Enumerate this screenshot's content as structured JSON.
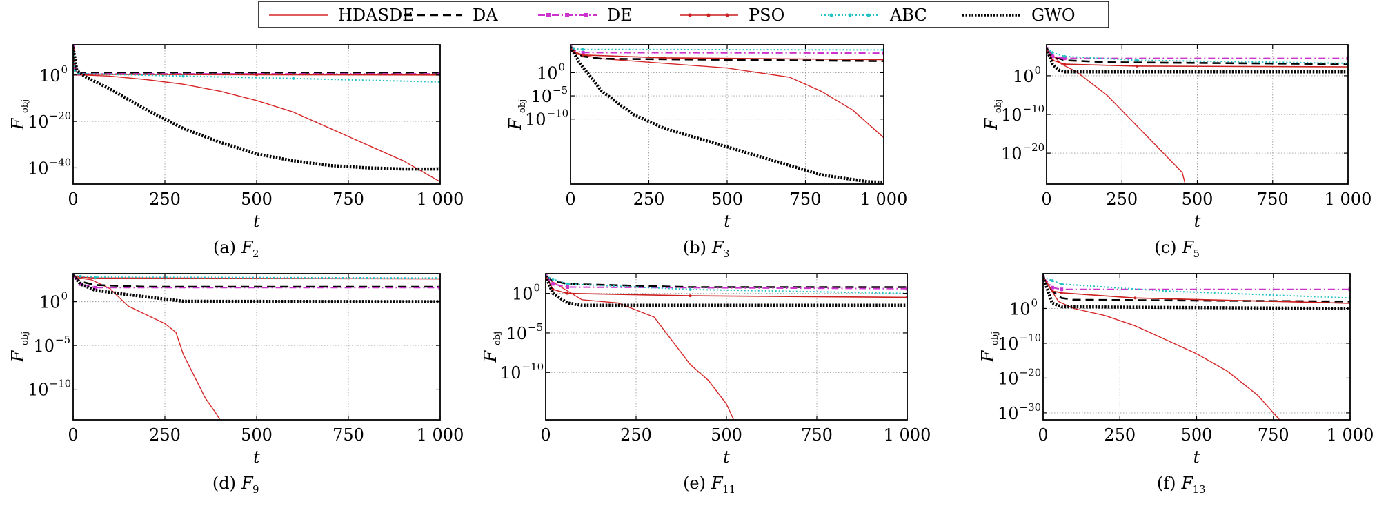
{
  "legend": {
    "entries": [
      {
        "name": "HDASDE",
        "color": "#d62728",
        "style": "solid"
      },
      {
        "name": "DA",
        "color": "#000000",
        "style": "dashed"
      },
      {
        "name": "DE",
        "color": "#cc33cc",
        "style": "dashdot-marker"
      },
      {
        "name": "PSO",
        "color": "#cc1f1f",
        "style": "solid-marker"
      },
      {
        "name": "ABC",
        "color": "#22c1c3",
        "style": "dotted-marker"
      },
      {
        "name": "GWO",
        "color": "#000000",
        "style": "thick-dotted"
      }
    ]
  },
  "chart_data": [
    {
      "type": "line",
      "caption_prefix": "(a)",
      "caption_fn": "F",
      "caption_sub": "2",
      "xlabel": "t",
      "ylabel": "F",
      "ylabel_sub": "obj",
      "yscale": "log",
      "xlim": [
        0,
        1000
      ],
      "ylim_exp": [
        -47,
        13
      ],
      "xticks": [
        0,
        250,
        500,
        750,
        1000
      ],
      "xtick_labels": [
        "0",
        "250",
        "500",
        "750",
        "1 000"
      ],
      "ytick_exps": [
        0,
        -20,
        -40
      ],
      "ytick_exp_labels": [
        "0",
        "−20",
        "−40"
      ],
      "ytick_base": "10",
      "grid": true,
      "series": [
        {
          "name": "HDASDE",
          "x": [
            0,
            25,
            100,
            200,
            300,
            400,
            500,
            600,
            700,
            800,
            900,
            1000
          ],
          "y_exp": [
            0,
            0,
            -0.5,
            -2,
            -4,
            -7,
            -11,
            -16,
            -23,
            -30,
            -37,
            -46
          ]
        },
        {
          "name": "DA",
          "x": [
            0,
            5,
            15,
            1000
          ],
          "y_exp": [
            12,
            3,
            1,
            1
          ]
        },
        {
          "name": "DE",
          "x": [
            0,
            5,
            15,
            1000
          ],
          "y_exp": [
            12,
            2.5,
            0.5,
            0.5
          ]
        },
        {
          "name": "PSO",
          "x": [
            0,
            5,
            15,
            500,
            1000
          ],
          "y_exp": [
            11,
            2,
            0.3,
            0.1,
            0
          ]
        },
        {
          "name": "ABC",
          "x": [
            0,
            5,
            15,
            300,
            600,
            1000
          ],
          "y_exp": [
            10,
            2,
            0.6,
            -0.5,
            -1.5,
            -3
          ]
        },
        {
          "name": "GWO",
          "x": [
            0,
            10,
            30,
            100,
            200,
            300,
            400,
            500,
            600,
            700,
            800,
            900,
            1000
          ],
          "y_exp": [
            12,
            2,
            -0.5,
            -6,
            -15,
            -23,
            -29,
            -34,
            -37,
            -39,
            -40,
            -40.5,
            -40.5
          ]
        }
      ]
    },
    {
      "type": "line",
      "caption_prefix": "(b)",
      "caption_fn": "F",
      "caption_sub": "3",
      "xlabel": "t",
      "ylabel": "F",
      "ylabel_sub": "obj",
      "yscale": "log",
      "xlim": [
        0,
        1000
      ],
      "ylim_exp": [
        -24,
        6
      ],
      "xticks": [
        0,
        250,
        500,
        750,
        1000
      ],
      "xtick_labels": [
        "0",
        "250",
        "500",
        "750",
        "1 000"
      ],
      "ytick_exps": [
        0,
        -5,
        -10
      ],
      "ytick_exp_labels": [
        "0",
        "−5",
        "−10"
      ],
      "ytick_base": "10",
      "grid": true,
      "series": [
        {
          "name": "HDASDE",
          "x": [
            0,
            20,
            100,
            300,
            500,
            600,
            700,
            800,
            900,
            1000
          ],
          "y_exp": [
            5,
            4,
            3,
            2,
            1,
            0,
            -1,
            -4,
            -8,
            -14
          ]
        },
        {
          "name": "DA",
          "x": [
            0,
            10,
            40,
            100,
            1000
          ],
          "y_exp": [
            5.5,
            4.5,
            3.5,
            3,
            2.5
          ]
        },
        {
          "name": "DE",
          "x": [
            0,
            10,
            40,
            1000
          ],
          "y_exp": [
            5.5,
            4.8,
            4.3,
            4.2
          ]
        },
        {
          "name": "PSO",
          "x": [
            0,
            10,
            40,
            300,
            1000
          ],
          "y_exp": [
            5.5,
            4.5,
            3.8,
            3.2,
            2.8
          ]
        },
        {
          "name": "ABC",
          "x": [
            0,
            10,
            40,
            1000
          ],
          "y_exp": [
            5.5,
            5.2,
            5,
            4.9
          ]
        },
        {
          "name": "GWO",
          "x": [
            0,
            30,
            100,
            200,
            300,
            400,
            500,
            600,
            700,
            800,
            900,
            950,
            1000
          ],
          "y_exp": [
            5.5,
            2,
            -4,
            -9,
            -12,
            -14,
            -16,
            -18,
            -20,
            -22,
            -23,
            -23.5,
            -23.6
          ]
        }
      ]
    },
    {
      "type": "line",
      "caption_prefix": "(c)",
      "caption_fn": "F",
      "caption_sub": "5",
      "xlabel": "t",
      "ylabel": "F",
      "ylabel_sub": "obj",
      "yscale": "log",
      "xlim": [
        0,
        1000
      ],
      "ylim_exp": [
        -28,
        8
      ],
      "xticks": [
        0,
        250,
        500,
        750,
        1000
      ],
      "xtick_labels": [
        "0",
        "250",
        "500",
        "750",
        "1 000"
      ],
      "ytick_exps": [
        0,
        -10,
        -20
      ],
      "ytick_exp_labels": [
        "0",
        "−10",
        "−20"
      ],
      "ytick_base": "10",
      "grid": true,
      "series": [
        {
          "name": "HDASDE",
          "x": [
            0,
            50,
            100,
            150,
            200,
            250,
            300,
            350,
            400,
            450,
            460
          ],
          "y_exp": [
            7,
            3,
            1,
            -2,
            -5,
            -9,
            -13,
            -17,
            -21,
            -25,
            -28
          ]
        },
        {
          "name": "DA",
          "x": [
            0,
            20,
            60,
            200,
            1000
          ],
          "y_exp": [
            7,
            5,
            4,
            3.5,
            3
          ]
        },
        {
          "name": "DE",
          "x": [
            0,
            20,
            60,
            1000
          ],
          "y_exp": [
            7,
            5,
            4.5,
            4.5
          ]
        },
        {
          "name": "PSO",
          "x": [
            0,
            20,
            60,
            300,
            1000
          ],
          "y_exp": [
            7,
            4,
            3,
            2.5,
            2.3
          ]
        },
        {
          "name": "ABC",
          "x": [
            0,
            20,
            60,
            300,
            1000
          ],
          "y_exp": [
            7,
            6,
            5,
            4,
            3.2
          ]
        },
        {
          "name": "GWO",
          "x": [
            0,
            20,
            40,
            60,
            1000
          ],
          "y_exp": [
            7,
            3,
            1.5,
            1,
            1
          ]
        }
      ]
    },
    {
      "type": "line",
      "caption_prefix": "(d)",
      "caption_fn": "F",
      "caption_sub": "9",
      "xlabel": "t",
      "ylabel": "F",
      "ylabel_sub": "obj",
      "yscale": "log",
      "xlim": [
        0,
        1000
      ],
      "ylim_exp": [
        -13.5,
        3.2
      ],
      "xticks": [
        0,
        250,
        500,
        750,
        1000
      ],
      "xtick_labels": [
        "0",
        "250",
        "500",
        "750",
        "1 000"
      ],
      "ytick_exps": [
        0,
        -5,
        -10
      ],
      "ytick_exp_labels": [
        "0",
        "−5",
        "−10"
      ],
      "ytick_base": "10",
      "grid": true,
      "series": [
        {
          "name": "HDASDE",
          "x": [
            0,
            50,
            100,
            150,
            200,
            250,
            280,
            300,
            330,
            360,
            390,
            400
          ],
          "y_exp": [
            2.8,
            2.5,
            1.5,
            -0.5,
            -1.5,
            -2.5,
            -3.5,
            -6,
            -8.5,
            -11,
            -12.8,
            -13.5
          ]
        },
        {
          "name": "DA",
          "x": [
            0,
            20,
            60,
            200,
            1000
          ],
          "y_exp": [
            3,
            2.3,
            1.9,
            1.7,
            1.7
          ]
        },
        {
          "name": "DE",
          "x": [
            0,
            20,
            60,
            1000
          ],
          "y_exp": [
            3,
            2,
            1.6,
            1.6
          ]
        },
        {
          "name": "PSO",
          "x": [
            0,
            20,
            60,
            1000
          ],
          "y_exp": [
            3,
            2.8,
            2.7,
            2.6
          ]
        },
        {
          "name": "ABC",
          "x": [
            0,
            20,
            60,
            1000
          ],
          "y_exp": [
            3,
            2.9,
            2.8,
            2.7
          ]
        },
        {
          "name": "GWO",
          "x": [
            0,
            20,
            60,
            150,
            250,
            300,
            1000
          ],
          "y_exp": [
            3,
            2,
            1.3,
            0.8,
            0.3,
            0.05,
            0
          ]
        }
      ]
    },
    {
      "type": "line",
      "caption_prefix": "(e)",
      "caption_fn": "F",
      "caption_sub": "11",
      "xlabel": "t",
      "ylabel": "F",
      "ylabel_sub": "obj",
      "yscale": "log",
      "xlim": [
        0,
        1000
      ],
      "ylim_exp": [
        -16,
        2.5
      ],
      "xticks": [
        0,
        250,
        500,
        750,
        1000
      ],
      "xtick_labels": [
        "0",
        "250",
        "500",
        "750",
        "1 000"
      ],
      "ytick_exps": [
        0,
        -5,
        -10
      ],
      "ytick_exp_labels": [
        "0",
        "−5",
        "−10"
      ],
      "ytick_base": "10",
      "grid": true,
      "series": [
        {
          "name": "HDASDE",
          "x": [
            0,
            100,
            200,
            300,
            350,
            400,
            450,
            500,
            520
          ],
          "y_exp": [
            2,
            -0.8,
            -1.2,
            -3,
            -6,
            -9,
            -11,
            -14,
            -16
          ]
        },
        {
          "name": "DA",
          "x": [
            0,
            20,
            60,
            400,
            1000
          ],
          "y_exp": [
            2.2,
            1.6,
            1.2,
            0.8,
            0.8
          ]
        },
        {
          "name": "DE",
          "x": [
            0,
            20,
            60,
            1000
          ],
          "y_exp": [
            2.2,
            1.2,
            0.8,
            0.6
          ]
        },
        {
          "name": "PSO",
          "x": [
            0,
            20,
            60,
            400,
            1000
          ],
          "y_exp": [
            2.2,
            0.5,
            0,
            -0.3,
            -0.5
          ]
        },
        {
          "name": "ABC",
          "x": [
            0,
            20,
            60,
            400,
            1000
          ],
          "y_exp": [
            2.2,
            1.8,
            1.2,
            0.5,
            0
          ]
        },
        {
          "name": "GWO",
          "x": [
            0,
            20,
            60,
            100,
            1000
          ],
          "y_exp": [
            2.2,
            0,
            -1.2,
            -1.5,
            -1.5
          ]
        }
      ]
    },
    {
      "type": "line",
      "caption_prefix": "(f)",
      "caption_fn": "F",
      "caption_sub": "13",
      "xlabel": "t",
      "ylabel": "F",
      "ylabel_sub": "obj",
      "yscale": "log",
      "xlim": [
        0,
        1000
      ],
      "ylim_exp": [
        -32,
        10
      ],
      "xticks": [
        0,
        250,
        500,
        750,
        1000
      ],
      "xtick_labels": [
        "0",
        "250",
        "500",
        "750",
        "1 000"
      ],
      "ytick_exps": [
        0,
        -10,
        -20,
        -30
      ],
      "ytick_exp_labels": [
        "0",
        "−10",
        "−20",
        "−30"
      ],
      "ytick_base": "10",
      "grid": true,
      "series": [
        {
          "name": "HDASDE",
          "x": [
            0,
            50,
            100,
            200,
            300,
            400,
            500,
            600,
            700,
            770,
            1000
          ],
          "y_exp": [
            9,
            2,
            0,
            -2,
            -5,
            -9,
            -13,
            -18,
            -25,
            -32,
            -32
          ]
        },
        {
          "name": "DA",
          "x": [
            0,
            30,
            60,
            100,
            1000
          ],
          "y_exp": [
            9,
            5,
            3,
            2.5,
            2
          ]
        },
        {
          "name": "DE",
          "x": [
            0,
            30,
            60,
            1000
          ],
          "y_exp": [
            9,
            6,
            5.5,
            5.5
          ]
        },
        {
          "name": "PSO",
          "x": [
            0,
            30,
            60,
            300,
            1000
          ],
          "y_exp": [
            9,
            5,
            4.5,
            3,
            1.5
          ]
        },
        {
          "name": "ABC",
          "x": [
            0,
            30,
            60,
            400,
            1000
          ],
          "y_exp": [
            9,
            8,
            7,
            5,
            3
          ]
        },
        {
          "name": "GWO",
          "x": [
            0,
            30,
            60,
            1000
          ],
          "y_exp": [
            9,
            1.5,
            0.5,
            0
          ]
        }
      ]
    }
  ]
}
